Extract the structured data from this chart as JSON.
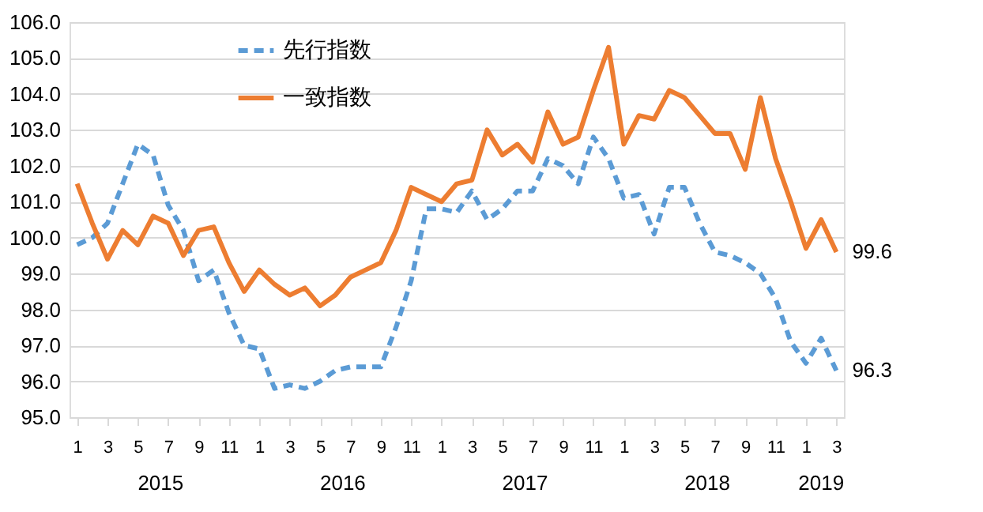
{
  "chart_data": {
    "type": "line",
    "categories": [
      "1",
      null,
      "3",
      null,
      "5",
      null,
      "7",
      null,
      "9",
      null,
      "11",
      null,
      "1",
      null,
      "3",
      null,
      "5",
      null,
      "7",
      null,
      "9",
      null,
      "11",
      null,
      "1",
      null,
      "3",
      null,
      "5",
      null,
      "7",
      null,
      "9",
      null,
      "11",
      null,
      "1",
      null,
      "3",
      null,
      "5",
      null,
      "7",
      null,
      "9",
      null,
      "11",
      null,
      "1",
      null,
      "3"
    ],
    "series": [
      {
        "name": "先行指数",
        "color": "#5b9bd5",
        "line_style": "dashed",
        "values": [
          99.8,
          100.0,
          100.4,
          101.5,
          102.6,
          102.3,
          100.9,
          100.2,
          98.8,
          99.1,
          97.9,
          97.0,
          96.9,
          95.8,
          95.9,
          95.8,
          96.0,
          96.3,
          96.4,
          96.4,
          96.4,
          97.5,
          98.8,
          100.8,
          100.8,
          100.7,
          101.3,
          100.5,
          100.8,
          101.3,
          101.3,
          102.2,
          102.0,
          101.5,
          102.8,
          102.2,
          101.1,
          101.2,
          100.1,
          101.4,
          101.4,
          100.4,
          99.6,
          99.5,
          99.3,
          99.0,
          98.3,
          97.1,
          96.5,
          97.2,
          96.3
        ],
        "value_labels": [
          null,
          null,
          null,
          null,
          null,
          null,
          null,
          null,
          null,
          null,
          null,
          null,
          null,
          null,
          null,
          null,
          null,
          null,
          null,
          null,
          null,
          null,
          null,
          null,
          null,
          null,
          null,
          null,
          null,
          null,
          null,
          null,
          null,
          null,
          null,
          null,
          null,
          null,
          null,
          null,
          null,
          null,
          null,
          null,
          null,
          null,
          null,
          null,
          null,
          null,
          "96.3"
        ]
      },
      {
        "name": "一致指数",
        "color": "#ed7d31",
        "line_style": "solid",
        "values": [
          101.5,
          100.4,
          99.4,
          100.2,
          99.8,
          100.6,
          100.4,
          99.5,
          100.2,
          100.3,
          99.3,
          98.5,
          99.1,
          98.7,
          98.4,
          98.6,
          98.1,
          98.4,
          98.9,
          99.1,
          99.3,
          100.2,
          101.4,
          101.2,
          101.0,
          101.5,
          101.6,
          103.0,
          102.3,
          102.6,
          102.1,
          103.5,
          102.6,
          102.8,
          104.1,
          105.3,
          102.6,
          103.4,
          103.3,
          104.1,
          103.9,
          103.4,
          102.9,
          102.9,
          101.9,
          103.9,
          102.2,
          101.0,
          99.7,
          100.5,
          99.6
        ],
        "value_labels": [
          null,
          null,
          null,
          null,
          null,
          null,
          null,
          null,
          null,
          null,
          null,
          null,
          null,
          null,
          null,
          null,
          null,
          null,
          null,
          null,
          null,
          null,
          null,
          null,
          null,
          null,
          null,
          null,
          null,
          null,
          null,
          null,
          null,
          null,
          null,
          null,
          null,
          null,
          null,
          null,
          null,
          null,
          null,
          null,
          null,
          null,
          null,
          null,
          null,
          null,
          "99.6"
        ]
      }
    ],
    "ylim": [
      95,
      106
    ],
    "yticks": [
      {
        "value": 95,
        "label": "95.0"
      },
      {
        "value": 96,
        "label": "96.0"
      },
      {
        "value": 97,
        "label": "97.0"
      },
      {
        "value": 98,
        "label": "98.0"
      },
      {
        "value": 99,
        "label": "99.0"
      },
      {
        "value": 100,
        "label": "100.0"
      },
      {
        "value": 101,
        "label": "101.0"
      },
      {
        "value": 102,
        "label": "102.0"
      },
      {
        "value": 103,
        "label": "103.0"
      },
      {
        "value": 104,
        "label": "104.0"
      },
      {
        "value": 105,
        "label": "105.0"
      },
      {
        "value": 106,
        "label": "106.0"
      }
    ],
    "annotations": [
      "2015",
      "2016",
      "2017",
      "2018",
      "2019"
    ],
    "grid": "y",
    "legend": "top left"
  }
}
